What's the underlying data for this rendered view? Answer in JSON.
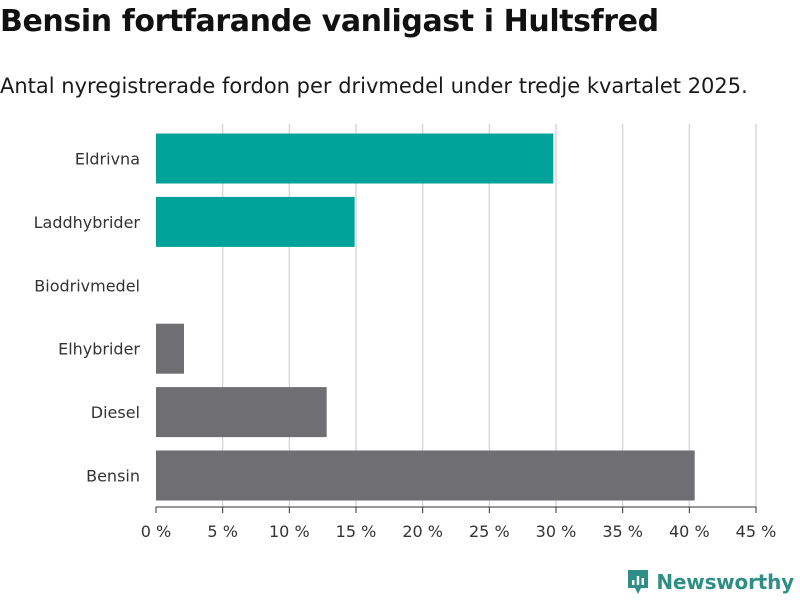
{
  "header": {
    "title": "Bensin fortfarande vanligast i Hultsfred",
    "subtitle": "Antal nyregistrerade fordon per drivmedel under tredje kvartalet 2025."
  },
  "chart_data": {
    "type": "bar",
    "orientation": "horizontal",
    "categories": [
      "Eldrivna",
      "Laddhybrider",
      "Biodrivmedel",
      "Elhybrider",
      "Diesel",
      "Bensin"
    ],
    "values": [
      29.8,
      14.9,
      0,
      2.1,
      12.8,
      40.4
    ],
    "bar_colors": [
      "#00a39a",
      "#00a39a",
      "#6e6e73",
      "#6e6e73",
      "#6e6e73",
      "#6e6e73"
    ],
    "xlim": [
      0,
      45
    ],
    "x_ticks": [
      0,
      5,
      10,
      15,
      20,
      25,
      30,
      35,
      40,
      45
    ],
    "x_tick_labels": [
      "0 %",
      "5 %",
      "10 %",
      "15 %",
      "20 %",
      "25 %",
      "30 %",
      "35 %",
      "40 %",
      "45 %"
    ],
    "grid": true,
    "grid_color": "#d9d9d9"
  },
  "brand": {
    "name": "Newsworthy",
    "icon": "newsworthy-logo-icon",
    "color": "#2f8f87"
  }
}
